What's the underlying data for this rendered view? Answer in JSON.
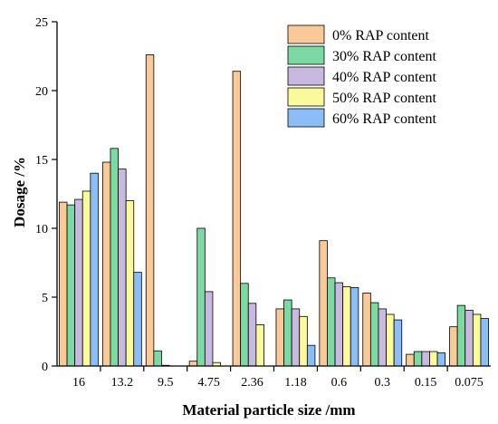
{
  "chart_data": {
    "type": "bar",
    "xlabel": "Material particle size /mm",
    "ylabel": "Dosage /%",
    "ylim": [
      0,
      25
    ],
    "yticks": [
      0,
      5,
      10,
      15,
      20,
      25
    ],
    "grid": false,
    "legend_position": "top-right",
    "categories": [
      "16",
      "13.2",
      "9.5",
      "4.75",
      "2.36",
      "1.18",
      "0.6",
      "0.3",
      "0.15",
      "0.075"
    ],
    "series": [
      {
        "name": "0% RAP content",
        "color": "#F9C997",
        "values": [
          11.9,
          14.8,
          22.6,
          0.35,
          21.4,
          4.15,
          9.1,
          5.3,
          0.85,
          2.85
        ]
      },
      {
        "name": "30% RAP content",
        "color": "#7CD9A2",
        "values": [
          11.7,
          15.8,
          1.1,
          10.0,
          6.0,
          4.8,
          6.4,
          4.6,
          1.05,
          4.4
        ]
      },
      {
        "name": "40% RAP content",
        "color": "#C9B8E0",
        "values": [
          12.1,
          14.3,
          0.05,
          5.4,
          4.55,
          4.15,
          6.05,
          4.15,
          1.05,
          4.05
        ]
      },
      {
        "name": "50% RAP content",
        "color": "#FAFA9A",
        "values": [
          12.7,
          12.0,
          0.0,
          0.25,
          3.0,
          3.6,
          5.75,
          3.75,
          1.05,
          3.75
        ]
      },
      {
        "name": "60% RAP content",
        "color": "#8BBEF7",
        "values": [
          14.0,
          6.8,
          0.0,
          0.0,
          0.0,
          1.5,
          5.7,
          3.35,
          0.95,
          3.45
        ]
      }
    ]
  }
}
